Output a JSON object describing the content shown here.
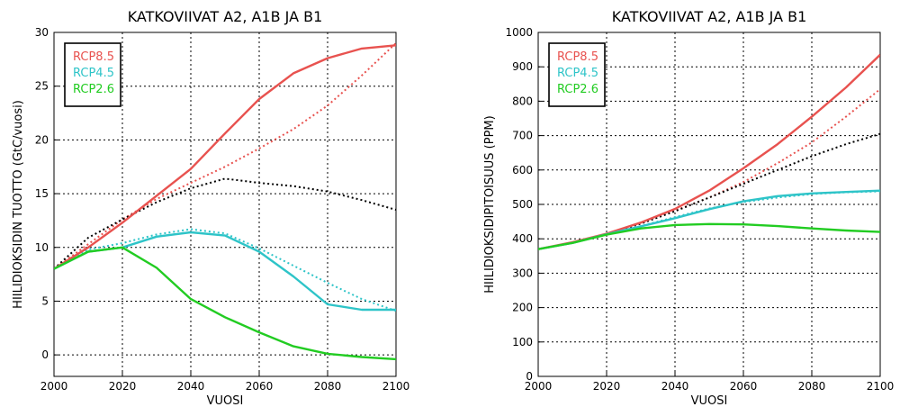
{
  "chart_data": [
    {
      "type": "line",
      "title": "KATKOVIIVAT A2, A1B JA B1",
      "xlabel": "VUOSI",
      "ylabel": "HIILIDIOKSIDIN TUOTTO (GtC/vuosi)",
      "xlim": [
        2000,
        2100
      ],
      "ylim": [
        -2,
        30
      ],
      "xticks": [
        2000,
        2020,
        2040,
        2060,
        2080,
        2100
      ],
      "yticks": [
        0,
        5,
        10,
        15,
        20,
        25,
        30
      ],
      "grid": true,
      "legend": "top-left",
      "series": [
        {
          "name": "RCP8.5",
          "color": "#e8524f",
          "dash": false,
          "x": [
            2000,
            2010,
            2020,
            2030,
            2040,
            2050,
            2060,
            2070,
            2080,
            2090,
            2100
          ],
          "y": [
            8.0,
            10.0,
            12.3,
            14.8,
            17.3,
            20.6,
            23.8,
            26.2,
            27.6,
            28.5,
            28.8
          ]
        },
        {
          "name": "RCP4.5",
          "color": "#2ec4c8",
          "dash": false,
          "x": [
            2000,
            2010,
            2020,
            2030,
            2040,
            2050,
            2060,
            2070,
            2080,
            2090,
            2100
          ],
          "y": [
            8.0,
            9.6,
            10.0,
            11.0,
            11.4,
            11.1,
            9.6,
            7.3,
            4.7,
            4.2,
            4.2
          ]
        },
        {
          "name": "RCP2.6",
          "color": "#22cc22",
          "dash": false,
          "x": [
            2000,
            2010,
            2020,
            2030,
            2040,
            2050,
            2060,
            2070,
            2080,
            2090,
            2100
          ],
          "y": [
            8.0,
            9.6,
            10.0,
            8.1,
            5.2,
            3.5,
            2.1,
            0.8,
            0.1,
            -0.2,
            -0.4
          ]
        },
        {
          "name": "",
          "color": "#e8524f",
          "dash": true,
          "x": [
            2000,
            2010,
            2020,
            2030,
            2040,
            2050,
            2060,
            2070,
            2080,
            2090,
            2100
          ],
          "y": [
            8.0,
            10.3,
            12.6,
            14.5,
            16.0,
            17.5,
            19.2,
            21.0,
            23.2,
            26.0,
            29.0
          ]
        },
        {
          "name": "",
          "color": "#000000",
          "dash": true,
          "x": [
            2000,
            2010,
            2020,
            2030,
            2040,
            2050,
            2060,
            2070,
            2080,
            2090,
            2100
          ],
          "y": [
            8.0,
            10.9,
            12.6,
            14.2,
            15.5,
            16.4,
            16.0,
            15.7,
            15.2,
            14.4,
            13.5
          ]
        },
        {
          "name": "",
          "color": "#2ec4c8",
          "dash": true,
          "x": [
            2000,
            2010,
            2020,
            2030,
            2040,
            2050,
            2060,
            2070,
            2080,
            2090,
            2100
          ],
          "y": [
            8.0,
            9.8,
            10.4,
            11.2,
            11.7,
            11.3,
            9.9,
            8.3,
            6.7,
            5.2,
            4.1
          ]
        }
      ]
    },
    {
      "type": "line",
      "title": "KATKOVIIVAT A2, A1B JA B1",
      "xlabel": "VUOSI",
      "ylabel": "HIILIDIOKSIDIPITOISUUS (PPM)",
      "xlim": [
        2000,
        2100
      ],
      "ylim": [
        0,
        1000
      ],
      "xticks": [
        2000,
        2020,
        2040,
        2060,
        2080,
        2100
      ],
      "yticks": [
        0,
        100,
        200,
        300,
        400,
        500,
        600,
        700,
        800,
        900,
        1000
      ],
      "grid": true,
      "legend": "top-left",
      "series": [
        {
          "name": "RCP8.5",
          "color": "#e8524f",
          "dash": false,
          "x": [
            2000,
            2010,
            2020,
            2030,
            2040,
            2050,
            2060,
            2070,
            2080,
            2090,
            2100
          ],
          "y": [
            370,
            390,
            415,
            447,
            487,
            540,
            605,
            675,
            755,
            840,
            935
          ]
        },
        {
          "name": "RCP4.5",
          "color": "#2ec4c8",
          "dash": false,
          "x": [
            2000,
            2010,
            2020,
            2030,
            2040,
            2050,
            2060,
            2070,
            2080,
            2090,
            2100
          ],
          "y": [
            370,
            388,
            413,
            436,
            460,
            486,
            509,
            524,
            532,
            536,
            540
          ]
        },
        {
          "name": "RCP2.6",
          "color": "#22cc22",
          "dash": false,
          "x": [
            2000,
            2010,
            2020,
            2030,
            2040,
            2050,
            2060,
            2070,
            2080,
            2090,
            2100
          ],
          "y": [
            370,
            388,
            412,
            430,
            440,
            443,
            442,
            437,
            430,
            424,
            420
          ]
        },
        {
          "name": "",
          "color": "#e8524f",
          "dash": true,
          "x": [
            2000,
            2010,
            2020,
            2030,
            2040,
            2050,
            2060,
            2070,
            2080,
            2090,
            2100
          ],
          "y": [
            370,
            388,
            415,
            446,
            482,
            520,
            565,
            620,
            680,
            755,
            835
          ]
        },
        {
          "name": "",
          "color": "#000000",
          "dash": true,
          "x": [
            2000,
            2010,
            2020,
            2030,
            2040,
            2050,
            2060,
            2070,
            2080,
            2090,
            2100
          ],
          "y": [
            370,
            388,
            414,
            444,
            480,
            520,
            560,
            600,
            640,
            675,
            705
          ]
        },
        {
          "name": "",
          "color": "#2ec4c8",
          "dash": true,
          "x": [
            2000,
            2010,
            2020,
            2030,
            2040,
            2050,
            2060,
            2070,
            2080,
            2090,
            2100
          ],
          "y": [
            370,
            388,
            413,
            437,
            463,
            488,
            507,
            520,
            530,
            535,
            538
          ]
        }
      ]
    }
  ]
}
